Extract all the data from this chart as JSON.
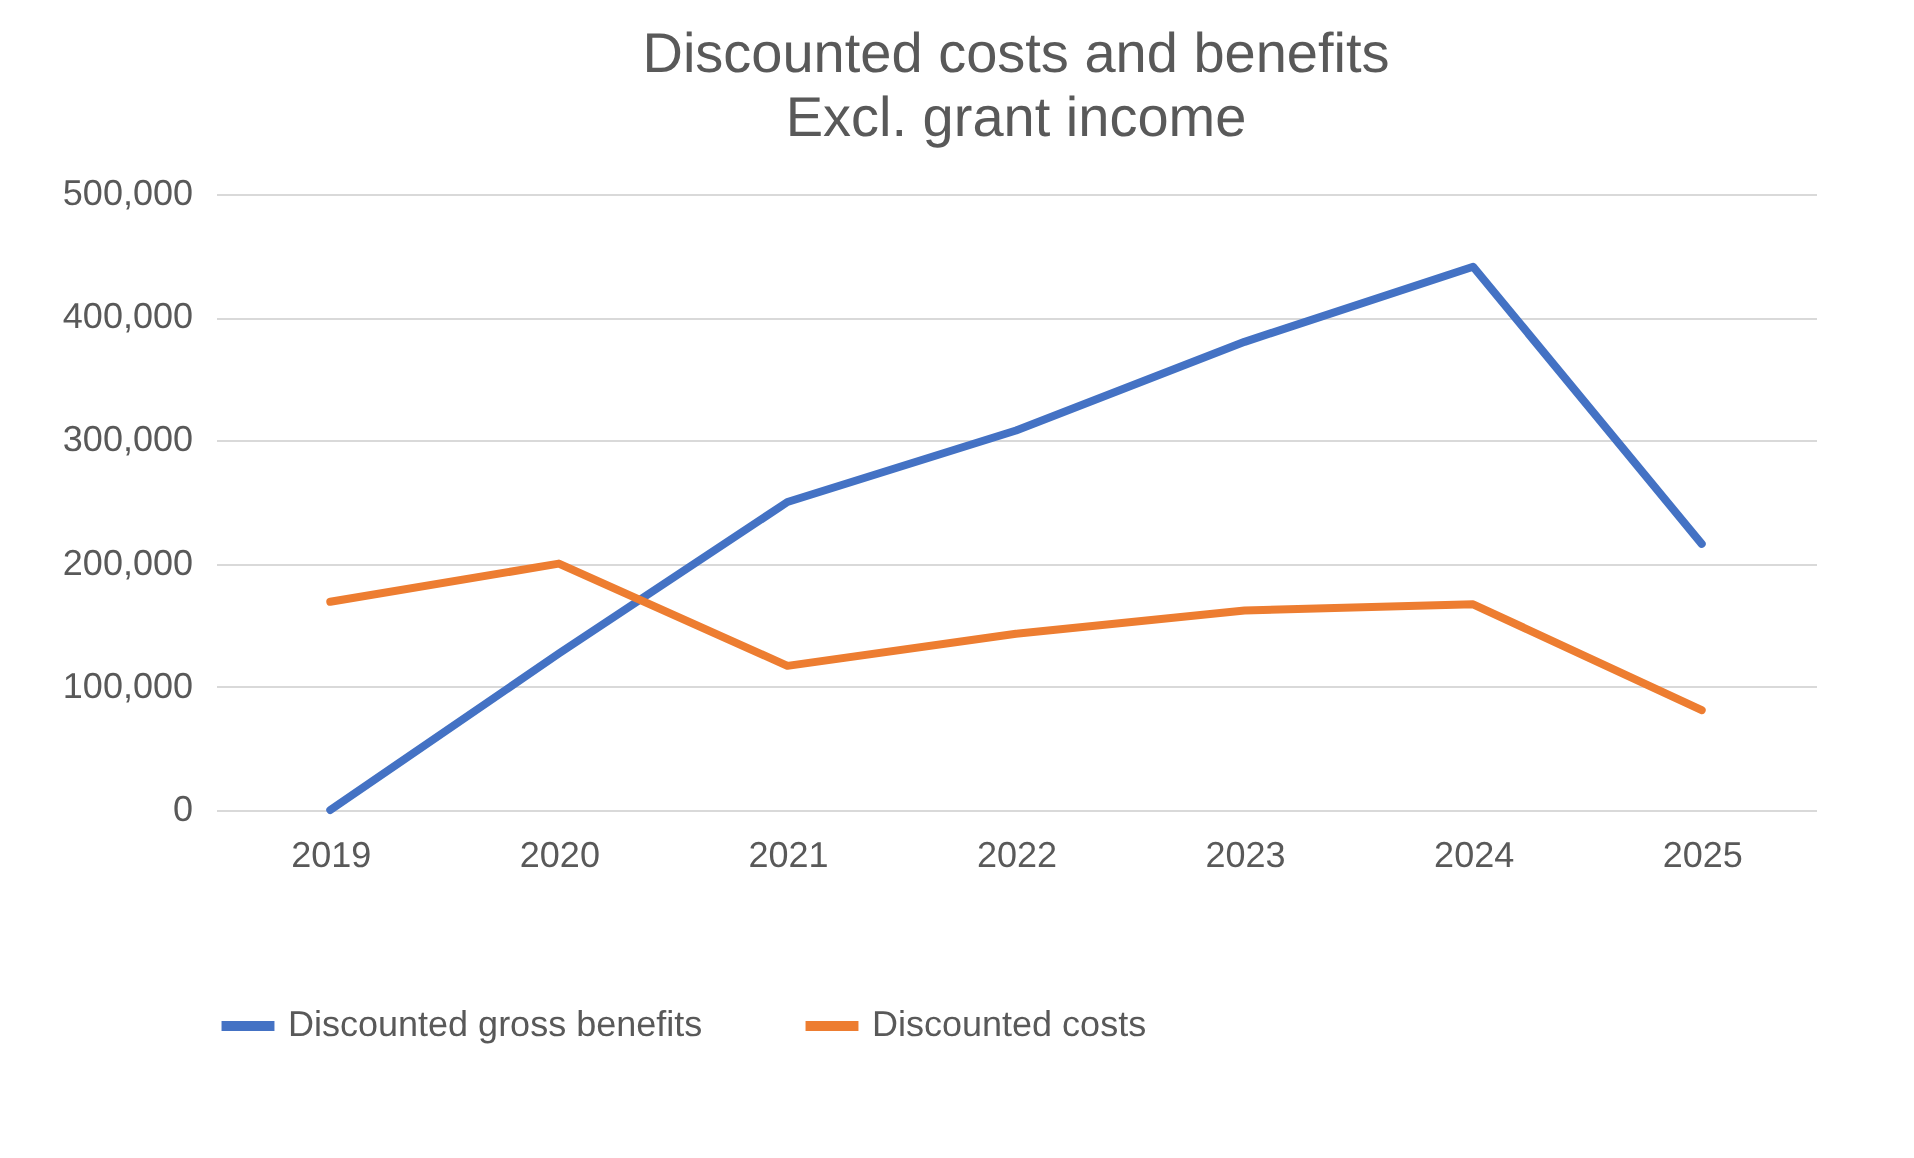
{
  "chart_data": {
    "type": "line",
    "title": "Discounted costs and benefits",
    "subtitle": "Excl. grant income",
    "categories": [
      "2019",
      "2020",
      "2021",
      "2022",
      "2023",
      "2024",
      "2025"
    ],
    "series": [
      {
        "name": "Discounted gross benefits",
        "color": "#4472c4",
        "values": [
          0,
          127000,
          250000,
          308000,
          380000,
          441000,
          216000
        ]
      },
      {
        "name": "Discounted costs",
        "color": "#ed7d31",
        "values": [
          169000,
          200000,
          117000,
          143000,
          162000,
          167000,
          81000
        ]
      }
    ],
    "ylim": [
      0,
      500000
    ],
    "yticks": [
      0,
      {
        "value": 100000,
        "label": "100,000"
      },
      {
        "value": 200000,
        "label": "200,000"
      },
      {
        "value": 300000,
        "label": "300,000"
      },
      {
        "value": 400000,
        "label": "400,000"
      },
      {
        "value": 500000,
        "label": "500,000"
      }
    ],
    "grid": "y",
    "legend": "bottom",
    "marker": "none",
    "line_style": "solid"
  }
}
